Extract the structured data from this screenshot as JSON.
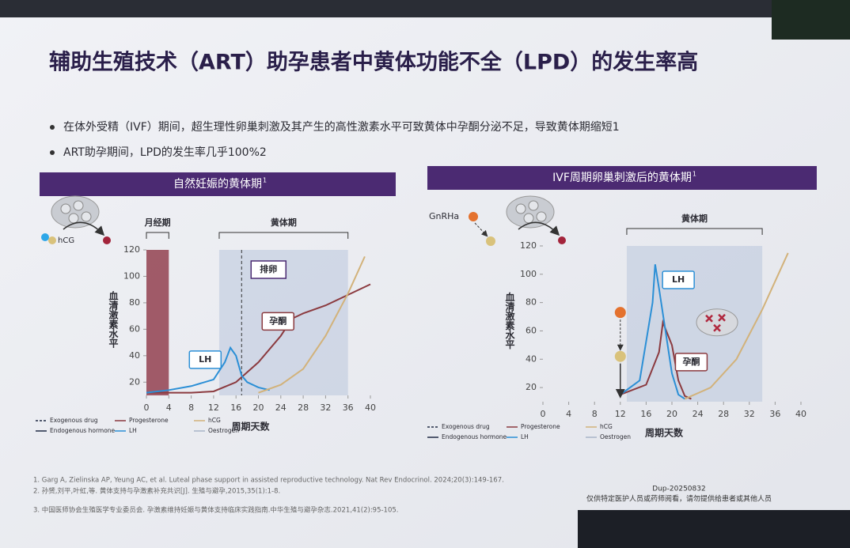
{
  "slide": {
    "title": "辅助生殖技术（ART）助孕患者中黄体功能不全（LPD）的发生率高",
    "bullets": [
      "在体外受精（IVF）期间，超生理性卵巢刺激及其产生的高性激素水平可致黄体中孕酮分泌不足，导致黄体期缩短1",
      "ART助孕期间，LPD的发生率几乎100%2"
    ],
    "references": [
      "1.     Garg A, Zielinska AP, Yeung AC, et al. Luteal phase support in assisted reproductive technology. Nat Rev Endocrinol. 2024;20(3):149-167.",
      "2.     孙赟,刘平,叶虹,等. 黄体支持与孕激素补充共识[J]. 生殖与避孕,2015,35(1):1-8.",
      "3.     中国医师协会生殖医学专业委员会. 孕激素维持妊娠与黄体支持临床实践指南.中华生殖与避孕杂志.2021,41(2):95-105."
    ],
    "code": "Dup-20250832",
    "notice": "仅供特定医护人员或药师阅看，请勿提供给患者或其他人员"
  },
  "chart_data": [
    {
      "type": "line",
      "title": "自然妊娠的黄体期",
      "title_ref": "1",
      "icon_label": "hCG",
      "xlabel": "周期天数",
      "ylabel": "血清激素水平",
      "xlim": [
        0,
        40
      ],
      "xticks": [
        0,
        4,
        8,
        12,
        16,
        20,
        24,
        28,
        32,
        36,
        40
      ],
      "ylim": [
        10,
        120
      ],
      "yticks": [
        20,
        40,
        60,
        80,
        100,
        120
      ],
      "phases": [
        {
          "label": "月经期",
          "x": [
            0,
            4
          ],
          "color": "#9c5260"
        },
        {
          "label": "黄体期",
          "x": [
            13,
            36
          ],
          "color": "#b9c7dc"
        }
      ],
      "ovulation": {
        "label": "排卵",
        "x": 17
      },
      "series": [
        {
          "name": "Progesterone",
          "callout": "孕酮",
          "color": "#8b3a3f",
          "x": [
            0,
            4,
            8,
            12,
            16,
            20,
            24,
            26,
            28,
            32,
            36,
            40
          ],
          "values": [
            12,
            12,
            12,
            13,
            20,
            35,
            55,
            68,
            72,
            78,
            86,
            94
          ]
        },
        {
          "name": "LH",
          "color": "#2b8fd6",
          "x": [
            0,
            4,
            8,
            12,
            14,
            15,
            16,
            17,
            18,
            20,
            22
          ],
          "values": [
            12,
            14,
            17,
            22,
            35,
            46,
            40,
            25,
            20,
            16,
            14
          ]
        },
        {
          "name": "hCG",
          "color": "#d2b27a",
          "x": [
            20,
            24,
            28,
            32,
            36,
            39
          ],
          "values": [
            12,
            18,
            30,
            55,
            87,
            115
          ]
        }
      ],
      "legend_styles": [
        {
          "name": "Exogenous drug",
          "dash": true
        },
        {
          "name": "Endogenous hormone",
          "dash": false
        }
      ],
      "legend_extra": [
        {
          "name": "Oestrogen",
          "color": "#a9b4c8"
        }
      ]
    },
    {
      "type": "line",
      "title": "IVF周期卵巢刺激后的黄体期",
      "title_ref": "1",
      "icon_label": "GnRHa",
      "xlabel": "周期天数",
      "ylabel": "血清激素水平",
      "xlim": [
        0,
        40
      ],
      "xticks": [
        0,
        4,
        8,
        12,
        16,
        20,
        24,
        28,
        32,
        36,
        40
      ],
      "ylim": [
        10,
        120
      ],
      "yticks": [
        20,
        40,
        60,
        80,
        100,
        120
      ],
      "phases": [
        {
          "label": "黄体期",
          "x": [
            13,
            34
          ],
          "color": "#b9c7dc"
        }
      ],
      "series": [
        {
          "name": "Progesterone",
          "callout": "孕酮",
          "color": "#8b3a3f",
          "x": [
            12,
            16,
            18,
            18.6,
            20,
            21,
            22,
            23
          ],
          "values": [
            15,
            22,
            45,
            66,
            50,
            25,
            14,
            12
          ]
        },
        {
          "name": "LH",
          "color": "#2b8fd6",
          "x": [
            12,
            15,
            17,
            17.4,
            18,
            19,
            20,
            21,
            22
          ],
          "values": [
            15,
            25,
            80,
            107,
            90,
            60,
            30,
            15,
            12
          ]
        },
        {
          "name": "hCG",
          "color": "#d2b27a",
          "x": [
            22,
            26,
            30,
            34,
            38
          ],
          "values": [
            12,
            20,
            40,
            75,
            115
          ]
        }
      ],
      "legend_styles": [
        {
          "name": "Exogenous drug",
          "dash": true
        },
        {
          "name": "Endogenous hormone",
          "dash": false
        }
      ],
      "legend_extra": [
        {
          "name": "Oestrogen",
          "color": "#a9b4c8"
        }
      ]
    }
  ]
}
